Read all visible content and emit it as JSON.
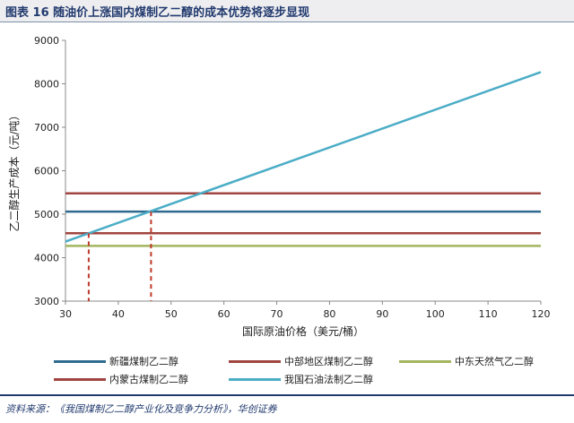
{
  "header": {
    "title": "图表 16   随油价上涨国内煤制乙二醇的成本优势将逐步显现"
  },
  "chart_data": {
    "type": "line",
    "title": "",
    "xlabel": "国际原油价格（美元/桶）",
    "ylabel": "乙二醇生产成本（元/吨）",
    "xlim": [
      30,
      120
    ],
    "ylim": [
      3000,
      9000
    ],
    "xticks": [
      30,
      40,
      50,
      60,
      70,
      80,
      90,
      100,
      110,
      120
    ],
    "yticks": [
      3000,
      4000,
      5000,
      6000,
      7000,
      8000,
      9000
    ],
    "grid": false,
    "legend_position": "bottom",
    "series": [
      {
        "name": "新疆煤制乙二醇",
        "color": "#2e6b8f",
        "x": [
          30,
          120
        ],
        "y": [
          5060,
          5060
        ]
      },
      {
        "name": "中部地区煤制乙二醇",
        "color": "#a0453f",
        "x": [
          30,
          120
        ],
        "y": [
          5480,
          5480
        ]
      },
      {
        "name": "中东天然气乙二醇",
        "color": "#a3b55e",
        "x": [
          30,
          120
        ],
        "y": [
          4270,
          4270
        ]
      },
      {
        "name": "内蒙古煤制乙二醇",
        "color": "#a0453f",
        "x": [
          30,
          120
        ],
        "y": [
          4560,
          4560
        ]
      },
      {
        "name": "我国石油法制乙二醇",
        "color": "#4badc6",
        "x": [
          30,
          120
        ],
        "y": [
          4370,
          8270
        ]
      }
    ],
    "annotations": [
      {
        "type": "dashed-drop",
        "x": 34.4,
        "y": 4560,
        "color": "#c0392b"
      },
      {
        "type": "dashed-drop",
        "x": 46.2,
        "y": 5060,
        "color": "#c0392b"
      }
    ]
  },
  "legend": {
    "items": [
      {
        "label": "新疆煤制乙二醇",
        "color": "#2e6b8f"
      },
      {
        "label": "中部地区煤制乙二醇",
        "color": "#a0453f"
      },
      {
        "label": "中东天然气乙二醇",
        "color": "#a3b55e"
      },
      {
        "label": "内蒙古煤制乙二醇",
        "color": "#a0453f"
      },
      {
        "label": "我国石油法制乙二醇",
        "color": "#4badc6"
      }
    ]
  },
  "footer": {
    "source": "资料来源：《我国煤制乙二醇产业化及竞争力分析》，华创证券"
  }
}
